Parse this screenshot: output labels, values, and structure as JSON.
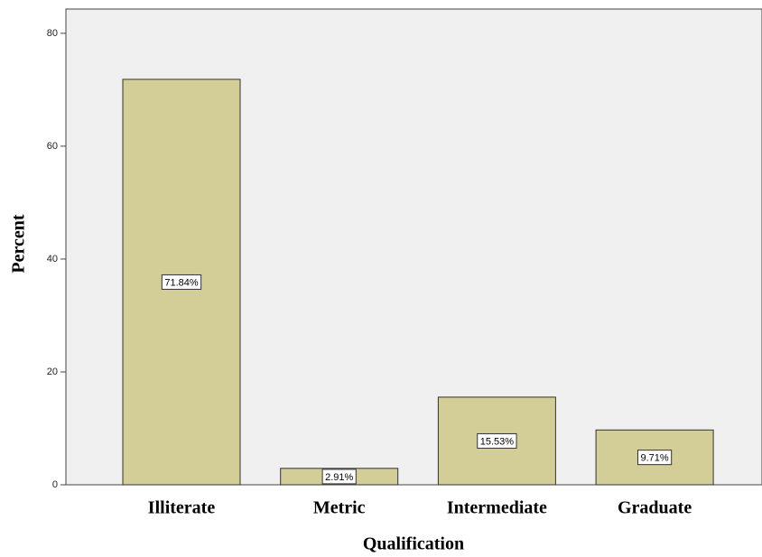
{
  "chart_data": {
    "type": "bar",
    "x_label": "Qualification",
    "y_label": "Percent",
    "categories": [
      "Illiterate",
      "Metric",
      "Intermediate",
      "Graduate"
    ],
    "values": [
      71.84,
      2.91,
      15.53,
      9.71
    ],
    "value_labels": [
      "71.84%",
      "2.91%",
      "15.53%",
      "9.71%"
    ],
    "color": "#d3ce97",
    "ylim": [
      0,
      84.3
    ],
    "yticks": [
      0,
      20,
      40,
      60,
      80
    ]
  }
}
